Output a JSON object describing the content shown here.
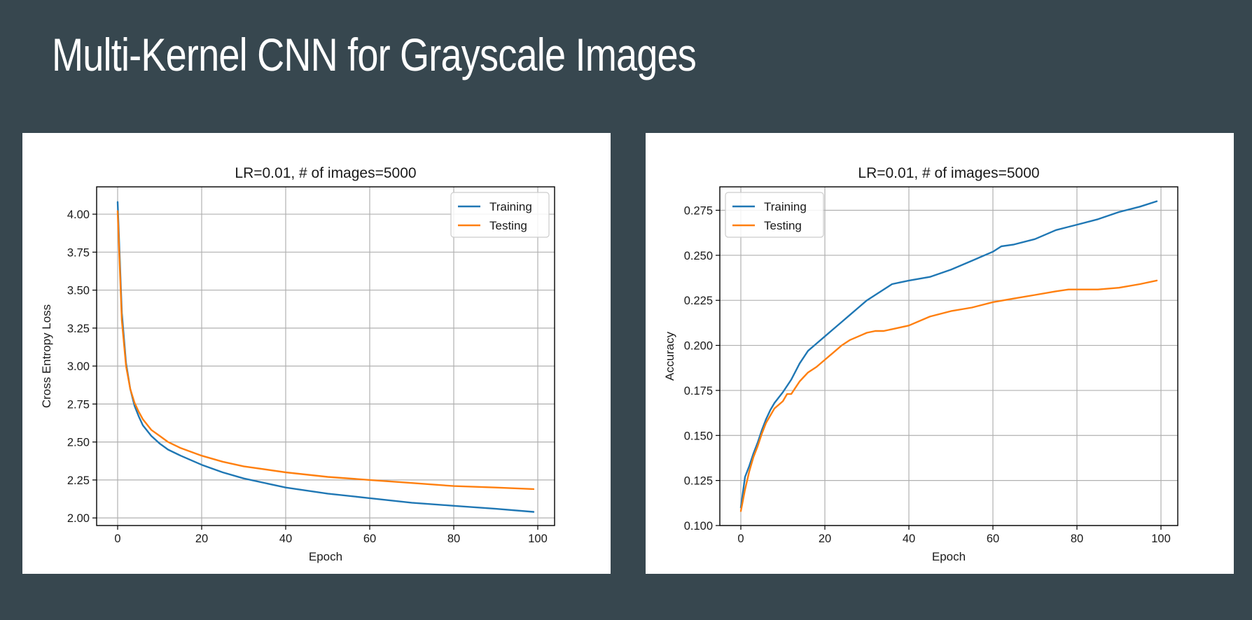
{
  "slide": {
    "title": "Multi-Kernel CNN for Grayscale Images"
  },
  "colors": {
    "background": "#37474f",
    "training": "#1f77b4",
    "testing": "#ff7f0e",
    "grid": "#b0b0b0"
  },
  "chart_data": [
    {
      "type": "line",
      "title": "LR=0.01, # of images=5000",
      "xlabel": "Epoch",
      "ylabel": "Cross Entropy Loss",
      "xlim": [
        -5,
        104
      ],
      "ylim": [
        1.95,
        4.18
      ],
      "xticks": [
        0,
        20,
        40,
        60,
        80,
        100
      ],
      "yticks": [
        2.0,
        2.25,
        2.5,
        2.75,
        3.0,
        3.25,
        3.5,
        3.75,
        4.0
      ],
      "ytick_labels": [
        "2.00",
        "2.25",
        "2.50",
        "2.75",
        "3.00",
        "3.25",
        "3.50",
        "3.75",
        "4.00"
      ],
      "grid": true,
      "legend_position": "top-right",
      "series": [
        {
          "name": "Training",
          "color": "#1f77b4",
          "x": [
            0,
            1,
            2,
            3,
            4,
            5,
            6,
            8,
            10,
            12,
            15,
            20,
            25,
            30,
            40,
            50,
            60,
            70,
            80,
            90,
            99
          ],
          "y": [
            4.08,
            3.35,
            3.02,
            2.85,
            2.74,
            2.67,
            2.61,
            2.54,
            2.49,
            2.45,
            2.41,
            2.35,
            2.3,
            2.26,
            2.2,
            2.16,
            2.13,
            2.1,
            2.08,
            2.06,
            2.04
          ]
        },
        {
          "name": "Testing",
          "color": "#ff7f0e",
          "x": [
            0,
            1,
            2,
            3,
            4,
            5,
            6,
            8,
            10,
            12,
            15,
            20,
            25,
            30,
            40,
            50,
            60,
            70,
            80,
            90,
            99
          ],
          "y": [
            4.02,
            3.3,
            3.0,
            2.85,
            2.76,
            2.7,
            2.65,
            2.58,
            2.54,
            2.5,
            2.46,
            2.41,
            2.37,
            2.34,
            2.3,
            2.27,
            2.25,
            2.23,
            2.21,
            2.2,
            2.19
          ]
        }
      ]
    },
    {
      "type": "line",
      "title": "LR=0.01, # of images=5000",
      "xlabel": "Epoch",
      "ylabel": "Accuracy",
      "xlim": [
        -5,
        104
      ],
      "ylim": [
        0.1,
        0.288
      ],
      "xticks": [
        0,
        20,
        40,
        60,
        80,
        100
      ],
      "yticks": [
        0.1,
        0.125,
        0.15,
        0.175,
        0.2,
        0.225,
        0.25,
        0.275
      ],
      "ytick_labels": [
        "0.100",
        "0.125",
        "0.150",
        "0.175",
        "0.200",
        "0.225",
        "0.250",
        "0.275"
      ],
      "grid": true,
      "legend_position": "top-left",
      "series": [
        {
          "name": "Training",
          "color": "#1f77b4",
          "x": [
            0,
            1,
            2,
            3,
            4,
            5,
            6,
            7,
            8,
            10,
            12,
            14,
            16,
            18,
            20,
            22,
            24,
            26,
            28,
            30,
            32,
            34,
            36,
            38,
            40,
            45,
            50,
            55,
            60,
            62,
            65,
            70,
            75,
            80,
            85,
            90,
            95,
            99
          ],
          "y": [
            0.11,
            0.127,
            0.133,
            0.14,
            0.146,
            0.153,
            0.159,
            0.164,
            0.168,
            0.174,
            0.181,
            0.19,
            0.197,
            0.201,
            0.205,
            0.209,
            0.213,
            0.217,
            0.221,
            0.225,
            0.228,
            0.231,
            0.234,
            0.235,
            0.236,
            0.238,
            0.242,
            0.247,
            0.252,
            0.255,
            0.256,
            0.259,
            0.264,
            0.267,
            0.27,
            0.274,
            0.277,
            0.28
          ]
        },
        {
          "name": "Testing",
          "color": "#ff7f0e",
          "x": [
            0,
            1,
            2,
            3,
            4,
            5,
            6,
            7,
            8,
            10,
            11,
            12,
            14,
            16,
            18,
            20,
            22,
            24,
            26,
            28,
            30,
            32,
            34,
            36,
            38,
            40,
            45,
            50,
            55,
            60,
            65,
            70,
            75,
            78,
            80,
            85,
            90,
            95,
            99
          ],
          "y": [
            0.108,
            0.12,
            0.13,
            0.138,
            0.144,
            0.151,
            0.157,
            0.161,
            0.165,
            0.169,
            0.173,
            0.173,
            0.18,
            0.185,
            0.188,
            0.192,
            0.196,
            0.2,
            0.203,
            0.205,
            0.207,
            0.208,
            0.208,
            0.209,
            0.21,
            0.211,
            0.216,
            0.219,
            0.221,
            0.224,
            0.226,
            0.228,
            0.23,
            0.231,
            0.231,
            0.231,
            0.232,
            0.234,
            0.236
          ]
        }
      ]
    }
  ]
}
